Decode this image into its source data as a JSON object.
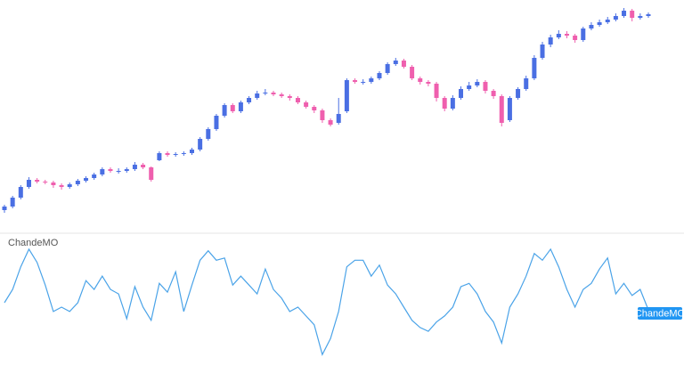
{
  "chart_data": [
    {
      "type": "candlestick",
      "up_color": "#4a6fe3",
      "down_color": "#ef5fae",
      "ylim": [
        0,
        260
      ],
      "open": [
        24,
        28,
        38,
        50,
        58,
        56,
        55,
        52,
        50,
        53,
        57,
        60,
        64,
        70,
        68,
        68,
        70,
        75,
        72,
        80,
        88,
        86,
        87,
        88,
        92,
        104,
        115,
        130,
        142,
        135,
        145,
        150,
        155,
        156,
        154,
        152,
        150,
        145,
        140,
        136,
        125,
        122,
        135,
        170,
        168,
        168,
        172,
        178,
        188,
        192,
        185,
        172,
        168,
        166,
        150,
        138,
        150,
        160,
        164,
        168,
        158,
        152,
        125,
        150,
        160,
        172,
        195,
        210,
        218,
        222,
        220,
        215,
        228,
        232,
        235,
        238,
        242,
        248,
        240,
        242
      ],
      "high": [
        30,
        40,
        52,
        61,
        60,
        58,
        57,
        54,
        55,
        59,
        62,
        66,
        72,
        72,
        71,
        72,
        78,
        77,
        73,
        90,
        90,
        89,
        90,
        94,
        106,
        117,
        132,
        144,
        144,
        147,
        152,
        158,
        160,
        158,
        156,
        154,
        152,
        147,
        142,
        138,
        127,
        150,
        172,
        172,
        171,
        174,
        180,
        190,
        195,
        194,
        187,
        174,
        170,
        168,
        152,
        153,
        163,
        168,
        171,
        170,
        160,
        154,
        152,
        162,
        175,
        198,
        213,
        221,
        226,
        225,
        222,
        230,
        235,
        238,
        241,
        245,
        251,
        250,
        245,
        246
      ],
      "low": [
        21,
        26,
        36,
        48,
        54,
        53,
        49,
        47,
        48,
        51,
        55,
        58,
        62,
        66,
        65,
        66,
        68,
        70,
        56,
        79,
        84,
        84,
        85,
        86,
        90,
        102,
        113,
        128,
        133,
        133,
        143,
        148,
        153,
        152,
        150,
        147,
        143,
        138,
        133,
        122,
        118,
        120,
        133,
        166,
        165,
        166,
        170,
        176,
        186,
        183,
        170,
        165,
        163,
        146,
        135,
        136,
        148,
        158,
        162,
        155,
        149,
        118,
        123,
        148,
        158,
        170,
        193,
        207,
        216,
        217,
        212,
        213,
        226,
        230,
        233,
        236,
        240,
        236,
        238,
        240
      ],
      "close": [
        28,
        38,
        50,
        58,
        56,
        55,
        52,
        50,
        53,
        57,
        60,
        64,
        70,
        68,
        68,
        70,
        75,
        72,
        58,
        88,
        86,
        87,
        88,
        92,
        104,
        115,
        130,
        142,
        135,
        145,
        150,
        155,
        156,
        154,
        152,
        150,
        145,
        140,
        136,
        125,
        120,
        132,
        170,
        168,
        168,
        172,
        178,
        188,
        192,
        185,
        172,
        168,
        166,
        150,
        138,
        150,
        160,
        164,
        168,
        158,
        152,
        122,
        150,
        160,
        172,
        195,
        210,
        218,
        222,
        220,
        215,
        228,
        232,
        235,
        238,
        242,
        248,
        240,
        242,
        244
      ]
    },
    {
      "type": "line",
      "name": "ChandeMO",
      "color": "#4aa3e8",
      "ylim": [
        -100,
        100
      ],
      "values": [
        0,
        24,
        65,
        97,
        73,
        32,
        -16,
        -8,
        -16,
        0,
        40,
        24,
        48,
        24,
        16,
        -29,
        29,
        -8,
        -32,
        35,
        19,
        56,
        -16,
        32,
        77,
        94,
        77,
        81,
        32,
        48,
        32,
        16,
        61,
        24,
        8,
        -16,
        -8,
        -24,
        -40,
        -94,
        -65,
        -16,
        65,
        77,
        77,
        48,
        68,
        32,
        16,
        -8,
        -32,
        -45,
        -52,
        -35,
        -24,
        -8,
        29,
        35,
        16,
        -16,
        -35,
        -73,
        -8,
        16,
        48,
        89,
        77,
        97,
        65,
        24,
        -8,
        24,
        35,
        61,
        81,
        16,
        35,
        13,
        24,
        -13
      ]
    }
  ]
}
